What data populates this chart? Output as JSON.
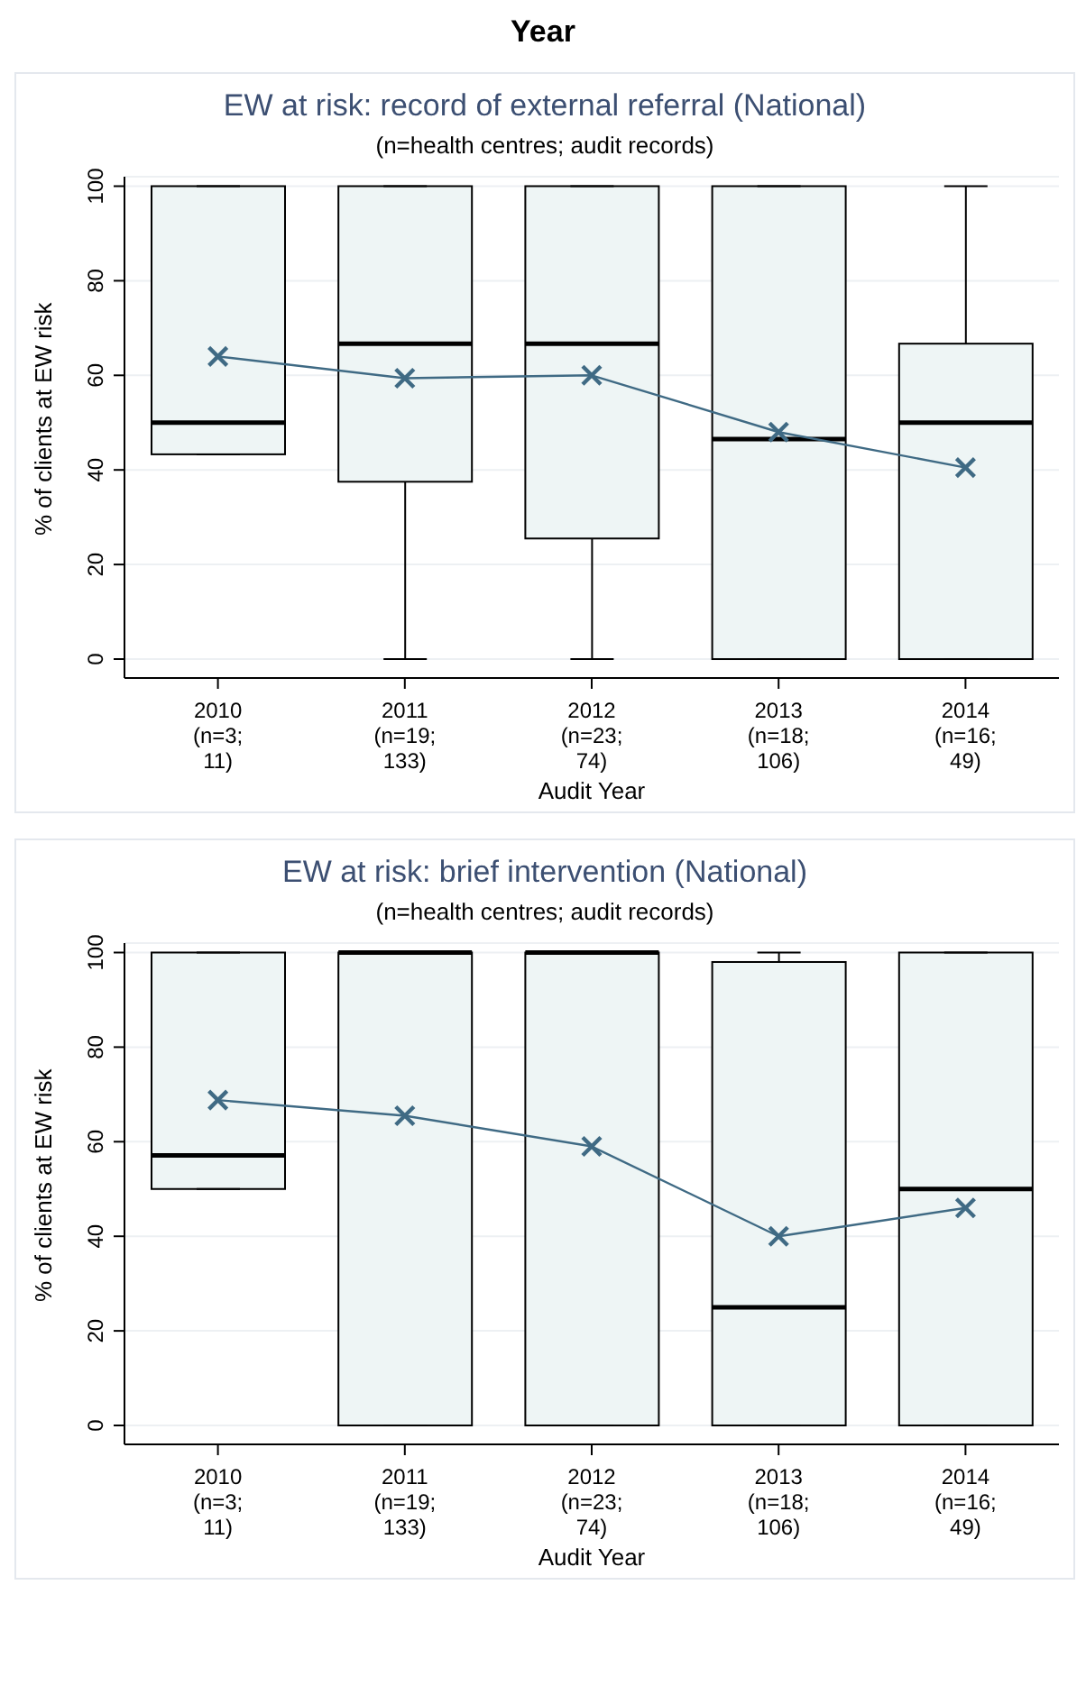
{
  "chart_data": [
    {
      "type": "box",
      "annotations": [
        "Year"
      ],
      "title": "EW at risk: record of external referral (National)",
      "subtitle": "(n=health centres; audit records)",
      "xlabel": "Audit Year",
      "ylabel": "% of clients at EW risk",
      "categories": [
        "2010\n(n=3;\n11)",
        "2011\n(n=19;\n133)",
        "2012\n(n=23;\n74)",
        "2013\n(n=18;\n106)",
        "2014\n(n=16;\n49)"
      ],
      "ylim": [
        -4,
        102
      ],
      "yticks": [
        0,
        20,
        40,
        60,
        80,
        100
      ],
      "grid": "y",
      "marker": "cross",
      "series": [
        {
          "type": "box",
          "color": "#eef5f5",
          "boxes": [
            {
              "low": 43.3,
              "q1": 43.3,
              "median": 50,
              "q3": 100,
              "high": 100
            },
            {
              "low": 0,
              "q1": 37.5,
              "median": 66.7,
              "q3": 100,
              "high": 100
            },
            {
              "low": 0,
              "q1": 25.5,
              "median": 66.7,
              "q3": 100,
              "high": 100
            },
            {
              "low": 0,
              "q1": 0,
              "median": 46.5,
              "q3": 100,
              "high": 100
            },
            {
              "low": 0,
              "q1": 0,
              "median": 50,
              "q3": 66.7,
              "high": 100
            }
          ]
        },
        {
          "type": "line",
          "color": "#3f6a84",
          "values": [
            64,
            59.4,
            60,
            48,
            40.5
          ]
        }
      ]
    },
    {
      "type": "box",
      "title": "EW at risk: brief intervention (National)",
      "subtitle": "(n=health centres; audit records)",
      "xlabel": "Audit Year",
      "ylabel": "% of clients at EW risk",
      "categories": [
        "2010\n(n=3;\n11)",
        "2011\n(n=19;\n133)",
        "2012\n(n=23;\n74)",
        "2013\n(n=18;\n106)",
        "2014\n(n=16;\n49)"
      ],
      "ylim": [
        -4,
        102
      ],
      "yticks": [
        0,
        20,
        40,
        60,
        80,
        100
      ],
      "grid": "y",
      "marker": "cross",
      "series": [
        {
          "type": "box",
          "color": "#eef5f5",
          "boxes": [
            {
              "low": 50,
              "q1": 50,
              "median": 57.1,
              "q3": 100,
              "high": 100
            },
            {
              "low": 0,
              "q1": 0,
              "median": 100,
              "q3": 100,
              "high": 100
            },
            {
              "low": 0,
              "q1": 0,
              "median": 100,
              "q3": 100,
              "high": 100
            },
            {
              "low": 0,
              "q1": 0,
              "median": 25,
              "q3": 98,
              "high": 100
            },
            {
              "low": 0,
              "q1": 0,
              "median": 50,
              "q3": 100,
              "high": 100
            }
          ]
        },
        {
          "type": "line",
          "color": "#3f6a84",
          "values": [
            68.8,
            65.5,
            59,
            40,
            46
          ]
        }
      ]
    }
  ]
}
